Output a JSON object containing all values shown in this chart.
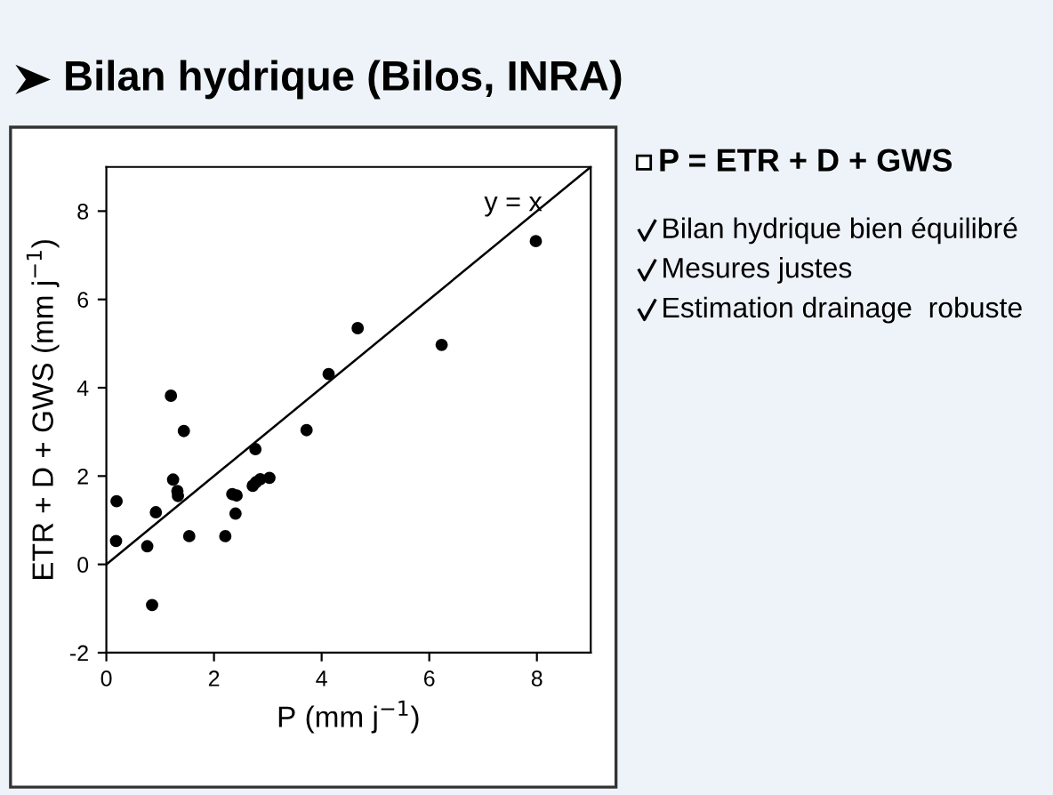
{
  "chart_data": {
    "type": "scatter",
    "title": "Bilan hydrique (Bilos, INRA)",
    "xlabel": "P (mm j$^{−1}$)",
    "ylabel": "ETR + D + GWS (mm j$^{−1}$)",
    "annotations": [
      "y = x",
      "P = ETR + D + GWS",
      "Bilan hydrique bien équilibré",
      "Mesures justes",
      "Estimation drainage  robuste"
    ],
    "series": [
      {
        "marker": "circle",
        "color": "#000000",
        "x": [
          0.18,
          0.19,
          0.76,
          0.85,
          0.92,
          1.2,
          1.24,
          1.32,
          1.33,
          1.44,
          1.54,
          2.21,
          2.34,
          2.42,
          2.4,
          2.72,
          2.77,
          2.78,
          2.86,
          3.03,
          3.72,
          4.13,
          4.67,
          6.23,
          7.98
        ],
        "values": [
          0.53,
          1.43,
          0.41,
          -0.92,
          1.18,
          3.82,
          1.92,
          1.66,
          1.55,
          3.02,
          0.64,
          0.64,
          1.59,
          1.56,
          1.15,
          1.78,
          2.61,
          1.86,
          1.93,
          1.96,
          3.04,
          4.31,
          5.35,
          4.97,
          7.32
        ]
      },
      {
        "type": "line",
        "marker": "none",
        "color": "#000000",
        "x": [
          0,
          9
        ],
        "values": [
          0,
          9
        ]
      }
    ],
    "xlim": [
      0,
      9
    ],
    "ylim": [
      -2,
      9
    ],
    "xticks": [
      0,
      2,
      4,
      6,
      8
    ],
    "yticks": [
      -2,
      0,
      2,
      4,
      6,
      8
    ],
    "grid": false,
    "legend": false
  }
}
